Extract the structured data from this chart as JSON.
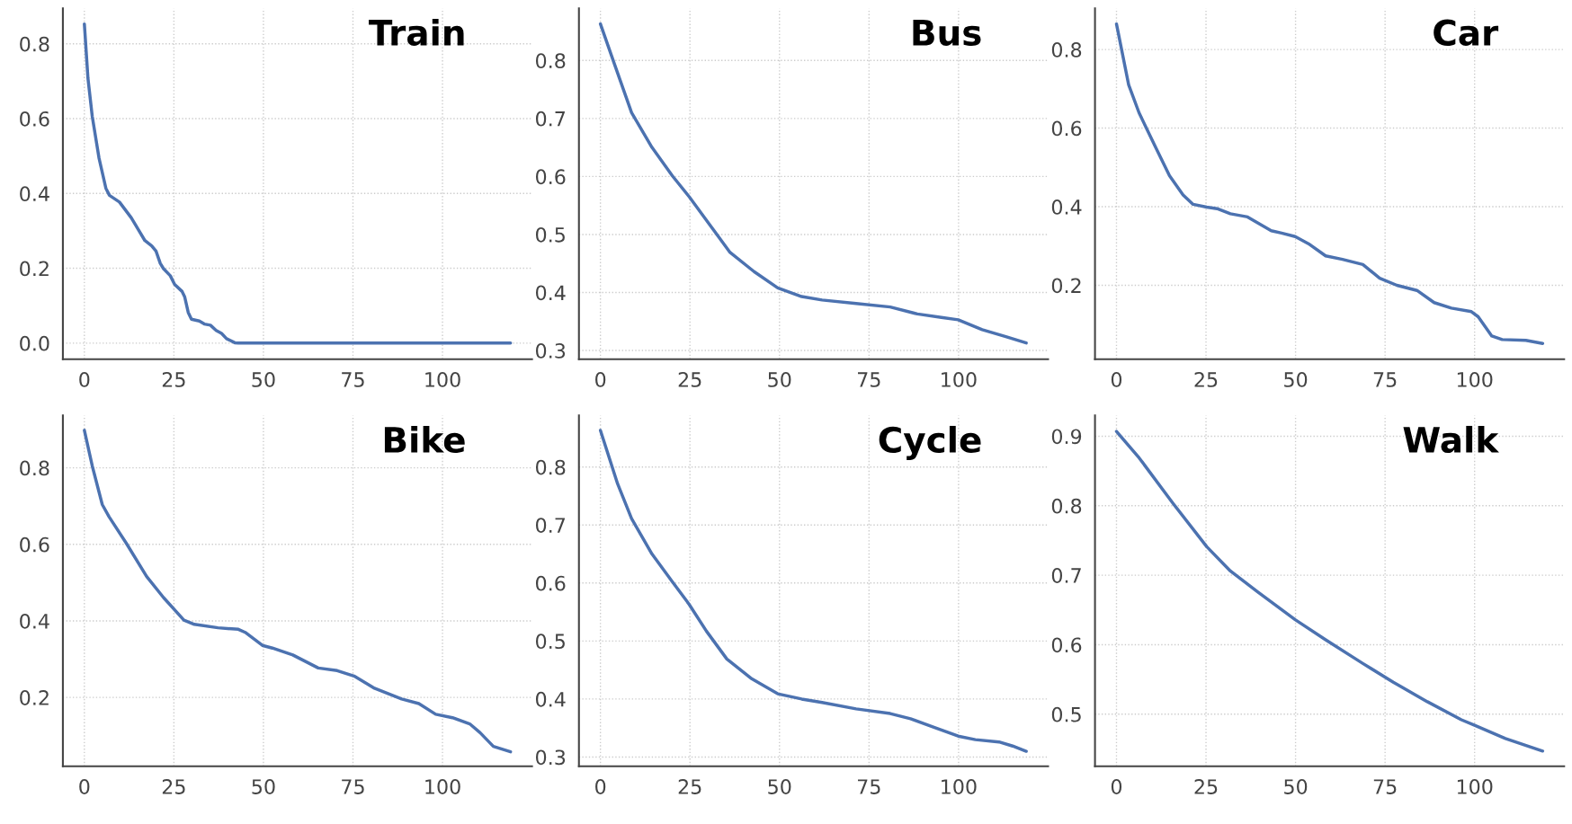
{
  "chart_data": [
    {
      "type": "line",
      "title": "Train",
      "xlim": [
        -6,
        125
      ],
      "xticks": [
        0,
        25,
        50,
        75,
        100
      ],
      "ylim": [
        -0.043,
        0.895
      ],
      "yticks": [
        {
          "value": 0,
          "label": "0.0"
        },
        0.2,
        0.4,
        0.6,
        0.8
      ],
      "grid": true,
      "series": [
        {
          "color": "#4c72b0",
          "x": [
            0,
            1,
            2.2,
            4.1,
            6,
            7,
            9.8,
            13.1,
            16.9,
            18.8,
            20,
            21.2,
            22.1,
            24,
            25.2,
            27.3,
            28,
            29,
            29.9,
            32.1,
            33.5,
            35.2,
            36.8,
            38.3,
            39.7,
            42,
            43,
            119
          ],
          "values": [
            0.853,
            0.708,
            0.606,
            0.494,
            0.414,
            0.395,
            0.377,
            0.335,
            0.274,
            0.26,
            0.246,
            0.213,
            0.199,
            0.18,
            0.157,
            0.138,
            0.124,
            0.082,
            0.064,
            0.059,
            0.051,
            0.048,
            0.034,
            0.026,
            0.012,
            0.001,
            0,
            0
          ]
        }
      ]
    },
    {
      "type": "line",
      "title": "Bus",
      "xlim": [
        -6,
        125
      ],
      "xticks": [
        0,
        25,
        50,
        75,
        100
      ],
      "ylim": [
        0.285,
        0.89
      ],
      "yticks": [
        0.3,
        0.4,
        0.5,
        0.6,
        0.7,
        0.8
      ],
      "grid": true,
      "series": [
        {
          "color": "#4c72b0",
          "x": [
            0,
            3.9,
            8.7,
            14.4,
            20.1,
            24.8,
            30.5,
            36.2,
            42.9,
            49.5,
            56.2,
            61.9,
            71.4,
            80.9,
            88.5,
            95.2,
            99.9,
            106.6,
            113.2,
            118.9
          ],
          "values": [
            0.863,
            0.794,
            0.71,
            0.65,
            0.601,
            0.565,
            0.517,
            0.469,
            0.436,
            0.408,
            0.393,
            0.387,
            0.381,
            0.375,
            0.363,
            0.357,
            0.353,
            0.336,
            0.324,
            0.313
          ]
        }
      ]
    },
    {
      "type": "line",
      "title": "Car",
      "xlim": [
        -6,
        125
      ],
      "xticks": [
        0,
        25,
        50,
        75,
        100
      ],
      "ylim": [
        0.012,
        0.905
      ],
      "yticks": [
        0.2,
        0.4,
        0.6,
        0.8
      ],
      "grid": true,
      "series": [
        {
          "color": "#4c72b0",
          "x": [
            0,
            3.4,
            6.3,
            11,
            14.8,
            18.6,
            21.4,
            25.2,
            28.1,
            31.8,
            36.6,
            43.2,
            46.1,
            49.9,
            53.6,
            58.4,
            63.1,
            68.8,
            73.5,
            78.3,
            83.9,
            88.7,
            93.5,
            99.1,
            101,
            104.8,
            107.7,
            114.3,
            119
          ],
          "values": [
            0.865,
            0.71,
            0.639,
            0.55,
            0.479,
            0.43,
            0.406,
            0.399,
            0.395,
            0.382,
            0.374,
            0.339,
            0.333,
            0.324,
            0.306,
            0.275,
            0.266,
            0.253,
            0.218,
            0.2,
            0.187,
            0.156,
            0.142,
            0.133,
            0.12,
            0.071,
            0.062,
            0.06,
            0.052
          ]
        }
      ]
    },
    {
      "type": "line",
      "title": "Bike",
      "xlim": [
        -6,
        125
      ],
      "xticks": [
        0,
        25,
        50,
        75,
        100
      ],
      "ylim": [
        0.02,
        0.937
      ],
      "yticks": [
        0.2,
        0.4,
        0.6,
        0.8
      ],
      "grid": true,
      "series": [
        {
          "color": "#4c72b0",
          "x": [
            0,
            2.2,
            5,
            6.9,
            11.7,
            17.4,
            22.1,
            27.8,
            30.7,
            37.3,
            43,
            44.9,
            49.7,
            52.5,
            58.2,
            65.3,
            70.6,
            75.3,
            81,
            88.6,
            93.4,
            98.1,
            102.8,
            107.6,
            110.5,
            114.2,
            119
          ],
          "values": [
            0.898,
            0.805,
            0.704,
            0.672,
            0.603,
            0.516,
            0.461,
            0.402,
            0.391,
            0.382,
            0.378,
            0.37,
            0.336,
            0.329,
            0.311,
            0.277,
            0.27,
            0.256,
            0.224,
            0.196,
            0.184,
            0.156,
            0.147,
            0.131,
            0.108,
            0.072,
            0.058
          ]
        }
      ]
    },
    {
      "type": "line",
      "title": "Cycle",
      "xlim": [
        -6,
        125
      ],
      "xticks": [
        0,
        25,
        50,
        75,
        100
      ],
      "ylim": [
        0.284,
        0.889
      ],
      "yticks": [
        0.3,
        0.4,
        0.5,
        0.6,
        0.7,
        0.8
      ],
      "grid": true,
      "series": [
        {
          "color": "#4c72b0",
          "x": [
            0,
            4.8,
            8.7,
            14.4,
            20.1,
            24.8,
            29.6,
            35.3,
            42,
            49.5,
            56.2,
            61.9,
            71.4,
            80.9,
            86.6,
            93.3,
            99.9,
            104.7,
            111.3,
            115.1,
            118.9
          ],
          "values": [
            0.863,
            0.771,
            0.711,
            0.65,
            0.602,
            0.563,
            0.517,
            0.469,
            0.436,
            0.409,
            0.4,
            0.394,
            0.383,
            0.375,
            0.366,
            0.351,
            0.336,
            0.33,
            0.326,
            0.319,
            0.31
          ]
        }
      ]
    },
    {
      "type": "line",
      "title": "Walk",
      "xlim": [
        -6,
        125
      ],
      "xticks": [
        0,
        25,
        50,
        75,
        100
      ],
      "ylim": [
        0.425,
        0.93
      ],
      "yticks": [
        0.5,
        0.6,
        0.7,
        0.8,
        0.9
      ],
      "grid": true,
      "series": [
        {
          "color": "#4c72b0",
          "x": [
            0,
            6.3,
            15.7,
            25.2,
            31.8,
            39.4,
            49.9,
            58.4,
            68.8,
            77.3,
            86.8,
            96.3,
            100,
            108.6,
            119
          ],
          "values": [
            0.907,
            0.869,
            0.804,
            0.741,
            0.706,
            0.676,
            0.636,
            0.607,
            0.573,
            0.546,
            0.518,
            0.492,
            0.484,
            0.465,
            0.447
          ]
        }
      ]
    }
  ]
}
